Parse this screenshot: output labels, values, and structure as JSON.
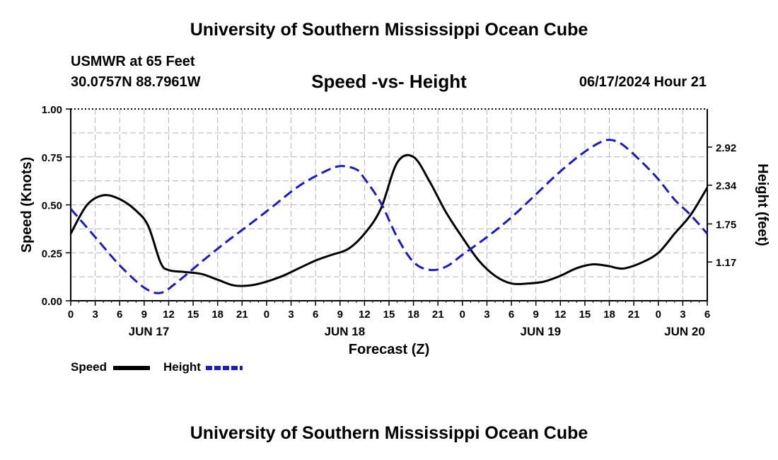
{
  "header": {
    "title": "University of Southern Mississippi Ocean Cube",
    "station": "USMWR at 65 Feet",
    "coords": "30.0757N  88.7961W",
    "subtitle": "Speed -vs- Height",
    "datetime": "06/17/2024 Hour 21",
    "footer_title": "University of Southern Mississippi Ocean Cube"
  },
  "legend": {
    "speed_label": "Speed",
    "height_label": "Height"
  },
  "colors": {
    "speed": "#000000",
    "height": "#1a1acc",
    "grid": "#b4b4b4"
  },
  "chart_data": {
    "type": "line",
    "title": "Speed -vs- Height",
    "xlabel": "Forecast (Z)",
    "ylabel": "Speed (Knots)",
    "y2label": "Height (feet)",
    "x_unit": "hours since Jun 17 00Z",
    "xlim": [
      0,
      78
    ],
    "x_ticks": [
      0,
      3,
      6,
      9,
      12,
      15,
      18,
      21,
      24,
      27,
      30,
      33,
      36,
      39,
      42,
      45,
      48,
      51,
      54,
      57,
      60,
      63,
      66,
      69,
      72,
      75,
      78
    ],
    "x_tick_labels": [
      "0",
      "3",
      "6",
      "9",
      "12",
      "15",
      "18",
      "21",
      "0",
      "3",
      "6",
      "9",
      "12",
      "15",
      "18",
      "21",
      "0",
      "3",
      "6",
      "9",
      "12",
      "15",
      "18",
      "21",
      "0",
      "3",
      "6"
    ],
    "day_labels": [
      {
        "x": 12,
        "label": "JUN 17"
      },
      {
        "x": 36,
        "label": "JUN 18"
      },
      {
        "x": 60,
        "label": "JUN 19"
      },
      {
        "x": 78,
        "label": "JUN 20"
      }
    ],
    "ylim": [
      0,
      1.0
    ],
    "y_ticks": [
      0,
      0.25,
      0.5,
      0.75,
      1.0
    ],
    "y_tick_labels": [
      "0.00",
      "0.25",
      "0.50",
      "0.75",
      "1.00"
    ],
    "y2lim": [
      0.58,
      3.5
    ],
    "y2_ticks": [
      1.17,
      1.75,
      2.34,
      2.92
    ],
    "y2_tick_labels": [
      "1.17",
      "1.75",
      "2.34",
      "2.92"
    ],
    "series": [
      {
        "name": "Speed",
        "axis": "left",
        "x": [
          0,
          2,
          4,
          6,
          8,
          9.5,
          11,
          12,
          14,
          16,
          18,
          20,
          22,
          24,
          26,
          28,
          30,
          32,
          34,
          36,
          38,
          40,
          42,
          44,
          46,
          48,
          50,
          52,
          54,
          56,
          58,
          60,
          62,
          64,
          66,
          67,
          68,
          70,
          72,
          74,
          76,
          78
        ],
        "values": [
          0.35,
          0.5,
          0.55,
          0.53,
          0.47,
          0.39,
          0.2,
          0.16,
          0.15,
          0.14,
          0.11,
          0.08,
          0.08,
          0.1,
          0.13,
          0.17,
          0.21,
          0.24,
          0.27,
          0.35,
          0.48,
          0.72,
          0.75,
          0.62,
          0.46,
          0.33,
          0.21,
          0.13,
          0.09,
          0.09,
          0.1,
          0.13,
          0.17,
          0.19,
          0.18,
          0.17,
          0.17,
          0.2,
          0.25,
          0.35,
          0.45,
          0.59
        ]
      },
      {
        "name": "Height",
        "axis": "right",
        "x": [
          0,
          3,
          6,
          9,
          11,
          13,
          16,
          19,
          22,
          25,
          28,
          31,
          33,
          35,
          36,
          38,
          40,
          42,
          44,
          46,
          48,
          51,
          54,
          57,
          60,
          63,
          65,
          66,
          67,
          68,
          70,
          72,
          74,
          76,
          78
        ],
        "values": [
          1.98,
          1.55,
          1.12,
          0.78,
          0.7,
          0.86,
          1.17,
          1.47,
          1.75,
          2.04,
          2.33,
          2.54,
          2.63,
          2.58,
          2.44,
          2.07,
          1.55,
          1.17,
          1.05,
          1.1,
          1.28,
          1.55,
          1.85,
          2.2,
          2.55,
          2.85,
          3.0,
          3.03,
          3.0,
          2.92,
          2.69,
          2.43,
          2.12,
          1.88,
          1.6
        ]
      }
    ]
  }
}
